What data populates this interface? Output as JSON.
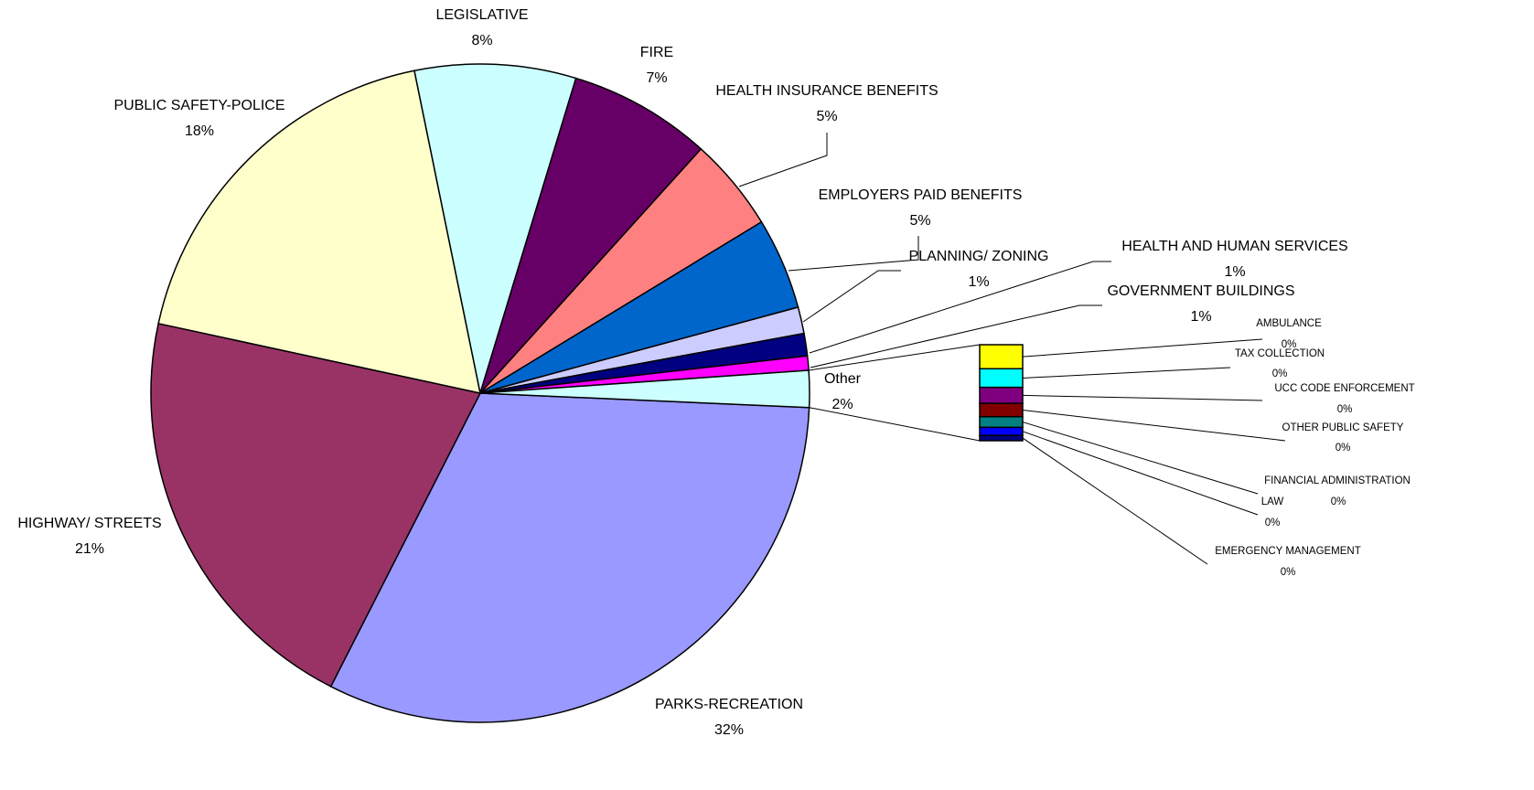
{
  "chart_data": {
    "type": "pie",
    "categories": [
      "PARKS-RECREATION",
      "HIGHWAY/ STREETS",
      "PUBLIC SAFETY-POLICE",
      "LEGISLATIVE",
      "FIRE",
      "HEALTH INSURANCE BENEFITS",
      "EMPLOYERS PAID BENEFITS",
      "PLANNING/ ZONING",
      "HEALTH AND HUMAN SERVICES",
      "GOVERNMENT BUILDINGS",
      "Other"
    ],
    "values": [
      31.8,
      20.9,
      18.4,
      7.9,
      7.0,
      4.6,
      4.5,
      1.3,
      1.1,
      0.7,
      1.8
    ],
    "value_labels": [
      "32%",
      "21%",
      "18%",
      "8%",
      "7%",
      "5%",
      "5%",
      "1%",
      "1%",
      "1%",
      "2%"
    ],
    "colors": [
      "#9999ff",
      "#993366",
      "#ffffcc",
      "#ccffff",
      "#660066",
      "#ff8080",
      "#0066cc",
      "#ccccff",
      "#000080",
      "#ff00ff",
      "#ccffff"
    ],
    "secondary": {
      "categories": [
        "AMBULANCE",
        "TAX COLLECTION",
        "UCC CODE ENFORCEMENT",
        "OTHER PUBLIC SAFETY",
        "FINANCIAL ADMINISTRATION",
        "LAW",
        "EMERGENCY MANAGEMENT"
      ],
      "values": [
        0.45,
        0.35,
        0.3,
        0.25,
        0.2,
        0.15,
        0.1
      ],
      "value_labels": [
        "0%",
        "0%",
        "0%",
        "0%",
        "0%",
        "0%",
        "0%"
      ],
      "colors": [
        "#ffff00",
        "#00ffff",
        "#800080",
        "#800000",
        "#008080",
        "#0000ff",
        "#000080"
      ]
    }
  }
}
